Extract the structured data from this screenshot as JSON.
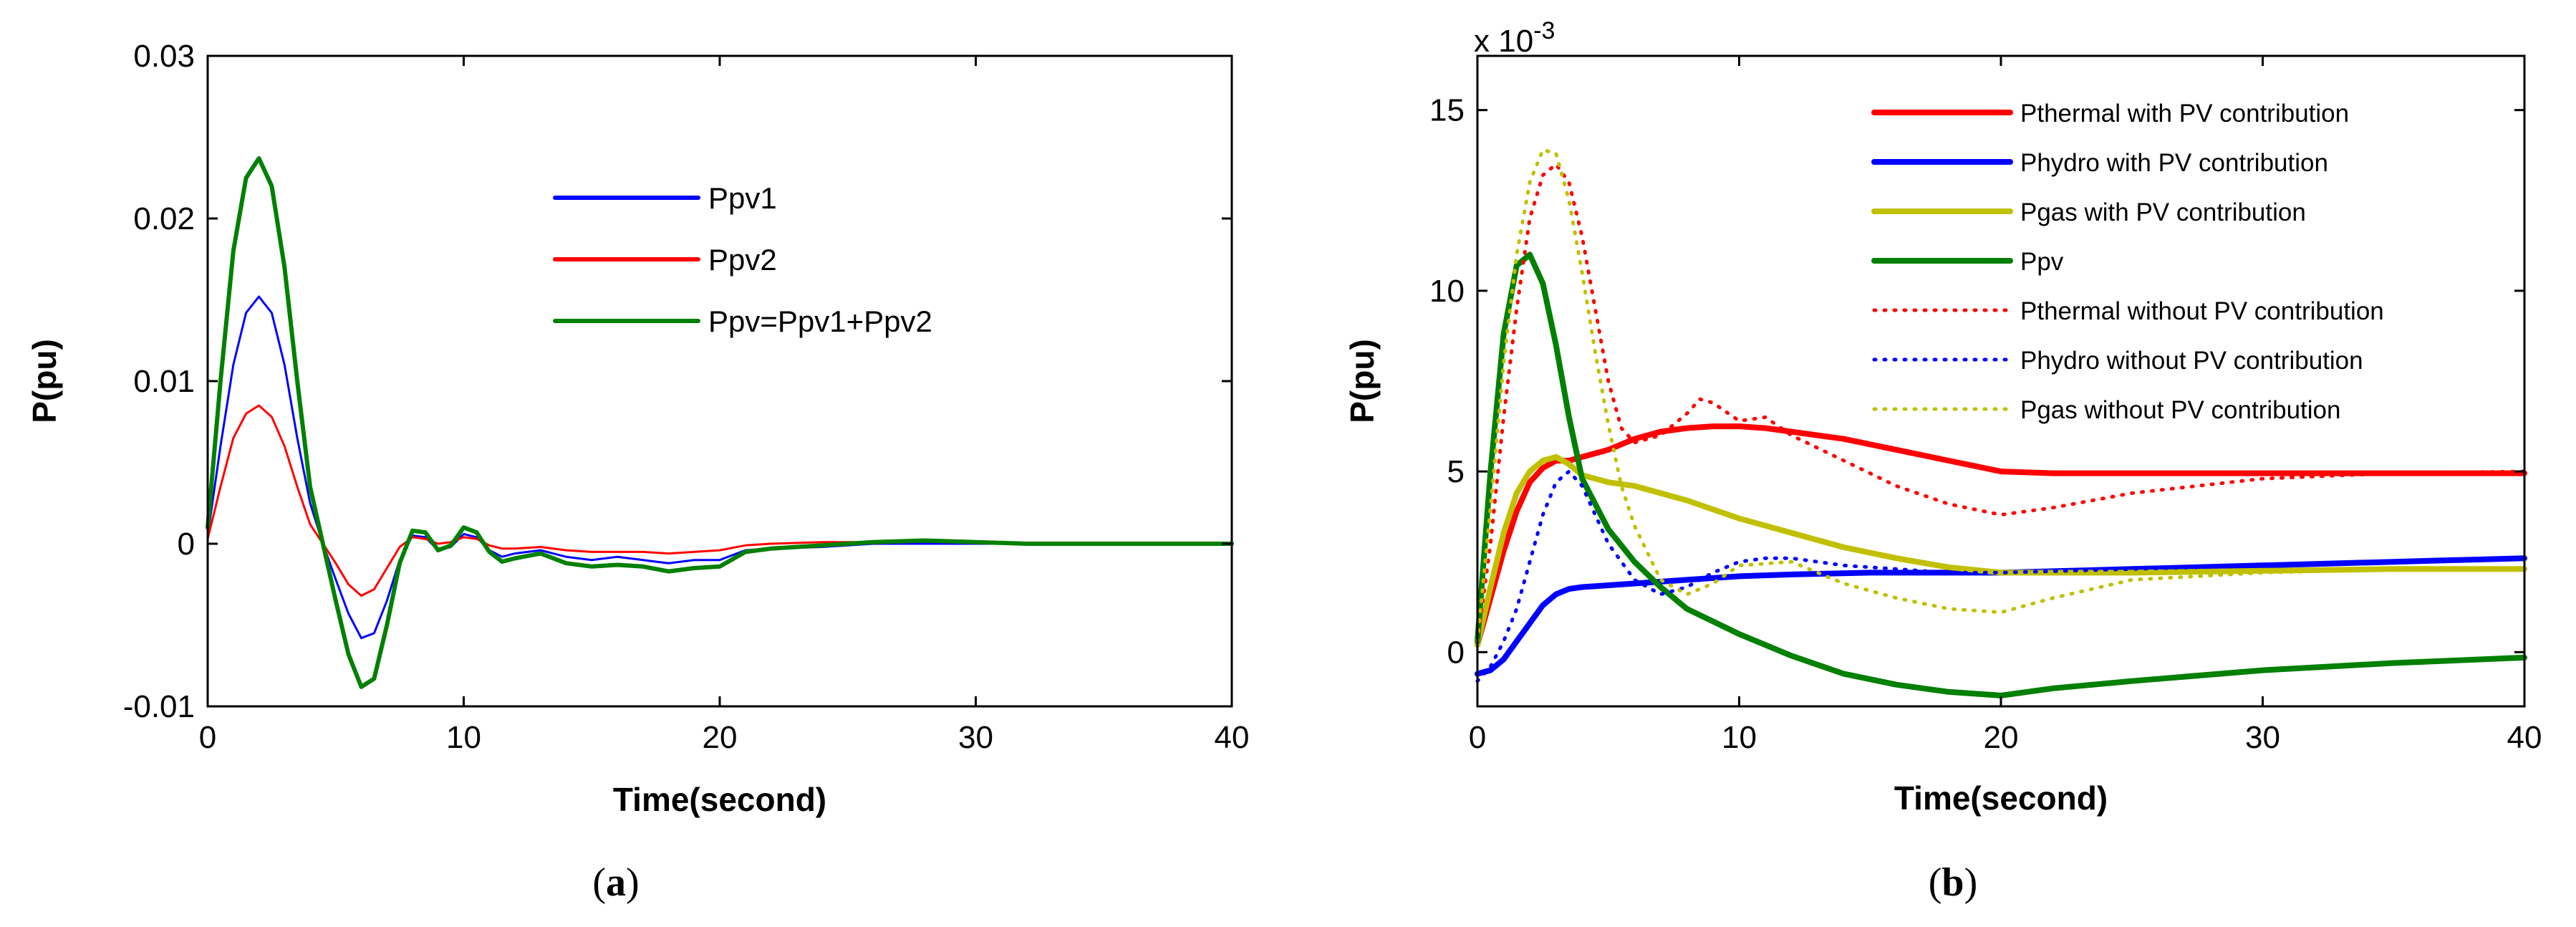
{
  "chart_data": [
    {
      "type": "line",
      "caption": "a",
      "xlabel": "Time(second)",
      "ylabel": "P(pu)",
      "xlim": [
        0,
        40
      ],
      "ylim": [
        -0.01,
        0.03
      ],
      "xticks": [
        "0",
        "10",
        "20",
        "30",
        "40"
      ],
      "yticks": [
        "-0.01",
        "0",
        "0.01",
        "0.02",
        "0.03"
      ],
      "legend_position": "upper-right",
      "series": [
        {
          "name": "Ppv1",
          "color": "#0000ff",
          "width": 3,
          "x": [
            0,
            0.5,
            1,
            1.5,
            2,
            2.5,
            3,
            3.5,
            4,
            4.5,
            5,
            5.5,
            6,
            6.5,
            7,
            7.5,
            8,
            8.5,
            9,
            9.5,
            10,
            10.5,
            11,
            11.5,
            12,
            13,
            14,
            15,
            16,
            17,
            18,
            19,
            20,
            21,
            22,
            24,
            26,
            28,
            30,
            32,
            35,
            40
          ],
          "y": [
            0.0005,
            0.006,
            0.011,
            0.0142,
            0.0152,
            0.0142,
            0.011,
            0.0065,
            0.0025,
            0.0,
            -0.0022,
            -0.0043,
            -0.0058,
            -0.0055,
            -0.0035,
            -0.001,
            0.0005,
            0.0004,
            -0.0004,
            -0.0002,
            0.0006,
            0.0004,
            -0.0004,
            -0.0008,
            -0.0006,
            -0.0004,
            -0.0008,
            -0.001,
            -0.0008,
            -0.001,
            -0.0012,
            -0.001,
            -0.001,
            -0.0004,
            -0.0003,
            -0.0002,
            0.0,
            0.0,
            0.0,
            0.0,
            0.0,
            0.0
          ]
        },
        {
          "name": "Ppv2",
          "color": "#ff0000",
          "width": 3,
          "x": [
            0,
            0.5,
            1,
            1.5,
            2,
            2.5,
            3,
            3.5,
            4,
            4.5,
            5,
            5.5,
            6,
            6.5,
            7,
            7.5,
            8,
            8.5,
            9,
            9.5,
            10,
            10.5,
            11,
            11.5,
            12,
            13,
            14,
            15,
            16,
            17,
            18,
            19,
            20,
            21,
            22,
            24,
            26,
            28,
            30,
            32,
            35,
            40
          ],
          "y": [
            0.0003,
            0.0035,
            0.0065,
            0.008,
            0.0085,
            0.0078,
            0.006,
            0.0035,
            0.0012,
            0.0,
            -0.0012,
            -0.0025,
            -0.0032,
            -0.0028,
            -0.0015,
            -0.0002,
            0.0004,
            0.0003,
            0.0,
            0.0001,
            0.0004,
            0.0003,
            -0.0001,
            -0.0003,
            -0.0003,
            -0.0002,
            -0.0004,
            -0.0005,
            -0.0005,
            -0.0005,
            -0.0006,
            -0.0005,
            -0.0004,
            -0.0001,
            0.0,
            0.0001,
            0.0001,
            0.0002,
            0.0001,
            0.0,
            0.0,
            0.0
          ]
        },
        {
          "name": "Ppv=Ppv1+Ppv2",
          "color": "#008000",
          "width": 6,
          "x": [
            0,
            0.5,
            1,
            1.5,
            2,
            2.5,
            3,
            3.5,
            4,
            4.5,
            5,
            5.5,
            6,
            6.5,
            7,
            7.5,
            8,
            8.5,
            9,
            9.5,
            10,
            10.5,
            11,
            11.5,
            12,
            13,
            14,
            15,
            16,
            17,
            18,
            19,
            20,
            21,
            22,
            24,
            26,
            28,
            30,
            32,
            35,
            40
          ],
          "y": [
            0.001,
            0.01,
            0.018,
            0.0225,
            0.0237,
            0.022,
            0.017,
            0.01,
            0.0035,
            0.0,
            -0.0035,
            -0.0068,
            -0.0088,
            -0.0083,
            -0.005,
            -0.0012,
            0.0008,
            0.0007,
            -0.0004,
            -0.0001,
            0.001,
            0.0007,
            -0.0005,
            -0.0011,
            -0.0009,
            -0.0006,
            -0.0012,
            -0.0014,
            -0.0013,
            -0.0014,
            -0.0017,
            -0.0015,
            -0.0014,
            -0.0005,
            -0.0003,
            -0.0001,
            0.0001,
            0.0002,
            0.0001,
            0.0,
            0.0,
            0.0
          ]
        }
      ]
    },
    {
      "type": "line",
      "caption": "b",
      "xlabel": "Time(second)",
      "ylabel": "P(pu)",
      "multiplier_base": "x 10",
      "multiplier_exponent": "-3",
      "xlim": [
        0,
        40
      ],
      "ylim": [
        -1.5,
        16.5
      ],
      "xticks": [
        "0",
        "10",
        "20",
        "30",
        "40"
      ],
      "yticks": [
        "0",
        "5",
        "10",
        "15"
      ],
      "legend_position": "upper-right",
      "series": [
        {
          "name": "Pthermal with PV contribution",
          "color": "#ff0000",
          "style": "solid",
          "width": 8,
          "x": [
            0,
            0.5,
            1,
            1.5,
            2,
            2.5,
            3,
            3.5,
            4,
            5,
            6,
            7,
            8,
            9,
            10,
            11,
            12,
            14,
            16,
            18,
            20,
            22,
            25,
            30,
            35,
            40
          ],
          "y": [
            0.2,
            1.5,
            2.8,
            3.9,
            4.7,
            5.1,
            5.3,
            5.3,
            5.4,
            5.6,
            5.9,
            6.1,
            6.2,
            6.25,
            6.25,
            6.2,
            6.1,
            5.9,
            5.6,
            5.3,
            5.0,
            4.95,
            4.95,
            4.95,
            4.95,
            4.95
          ]
        },
        {
          "name": "Phydro with PV contribution",
          "color": "#0000ff",
          "style": "solid",
          "width": 8,
          "x": [
            0,
            0.5,
            1,
            1.5,
            2,
            2.5,
            3,
            3.5,
            4,
            5,
            6,
            8,
            10,
            12,
            15,
            20,
            25,
            30,
            35,
            40
          ],
          "y": [
            -0.6,
            -0.5,
            -0.2,
            0.3,
            0.8,
            1.3,
            1.6,
            1.75,
            1.8,
            1.85,
            1.9,
            2.0,
            2.1,
            2.15,
            2.2,
            2.2,
            2.3,
            2.4,
            2.5,
            2.6
          ]
        },
        {
          "name": "Pgas with PV contribution",
          "color": "#c0c000",
          "style": "solid",
          "width": 8,
          "x": [
            0,
            0.5,
            1,
            1.5,
            2,
            2.5,
            3,
            3.5,
            4,
            5,
            6,
            8,
            10,
            12,
            14,
            16,
            18,
            20,
            25,
            30,
            35,
            40
          ],
          "y": [
            0.2,
            1.8,
            3.3,
            4.4,
            5.0,
            5.3,
            5.4,
            5.2,
            4.9,
            4.7,
            4.6,
            4.2,
            3.7,
            3.3,
            2.9,
            2.6,
            2.35,
            2.2,
            2.2,
            2.25,
            2.3,
            2.3
          ]
        },
        {
          "name": "Ppv",
          "color": "#008000",
          "style": "solid",
          "width": 8,
          "x": [
            0,
            0.5,
            1,
            1.5,
            2,
            2.5,
            3,
            3.5,
            4,
            5,
            6,
            7,
            8,
            10,
            12,
            14,
            16,
            18,
            20,
            22,
            25,
            30,
            35,
            40
          ],
          "y": [
            0.3,
            5.0,
            8.8,
            10.7,
            11.0,
            10.2,
            8.5,
            6.5,
            4.8,
            3.4,
            2.5,
            1.8,
            1.2,
            0.5,
            -0.1,
            -0.6,
            -0.9,
            -1.1,
            -1.2,
            -1.0,
            -0.8,
            -0.5,
            -0.3,
            -0.15
          ]
        },
        {
          "name": "Pthermal without PV contribution",
          "color": "#ff0000",
          "style": "dotted",
          "width": 5,
          "x": [
            0,
            0.5,
            1,
            1.5,
            2,
            2.5,
            3,
            3.5,
            4,
            4.5,
            5,
            5.5,
            6,
            7,
            8,
            8.5,
            9,
            10,
            11,
            12,
            14,
            16,
            18,
            20,
            22,
            25,
            30,
            35,
            40
          ],
          "y": [
            0.3,
            3.0,
            6.5,
            9.5,
            12.0,
            13.2,
            13.5,
            13.0,
            11.5,
            9.5,
            7.5,
            6.2,
            5.8,
            6.0,
            6.6,
            7.0,
            6.9,
            6.4,
            6.5,
            6.0,
            5.3,
            4.6,
            4.1,
            3.8,
            4.0,
            4.4,
            4.8,
            4.95,
            5.0
          ]
        },
        {
          "name": "Phydro without PV contribution",
          "color": "#0000ff",
          "style": "dotted",
          "width": 5,
          "x": [
            0,
            0.5,
            1,
            1.5,
            2,
            2.5,
            3,
            3.5,
            4,
            4.5,
            5,
            6,
            7,
            8,
            9,
            10,
            11,
            12,
            14,
            16,
            18,
            20,
            25,
            30,
            35,
            40
          ],
          "y": [
            -0.8,
            -0.4,
            0.3,
            1.2,
            2.5,
            3.8,
            4.7,
            5.0,
            4.6,
            3.8,
            3.0,
            2.0,
            1.6,
            1.8,
            2.2,
            2.5,
            2.6,
            2.6,
            2.4,
            2.3,
            2.2,
            2.2,
            2.3,
            2.4,
            2.5,
            2.6
          ]
        },
        {
          "name": "Pgas without PV contribution",
          "color": "#c0c000",
          "style": "dotted",
          "width": 5,
          "x": [
            0,
            0.5,
            1,
            1.5,
            2,
            2.5,
            3,
            3.5,
            4,
            4.5,
            5,
            5.5,
            6,
            7,
            8,
            9,
            10,
            12,
            14,
            16,
            18,
            20,
            22,
            25,
            30,
            35,
            40
          ],
          "y": [
            0.3,
            4.0,
            8.0,
            11.0,
            13.0,
            13.9,
            13.8,
            12.5,
            10.5,
            8.3,
            6.3,
            4.6,
            3.5,
            2.0,
            1.6,
            1.9,
            2.4,
            2.5,
            1.9,
            1.5,
            1.2,
            1.1,
            1.5,
            2.0,
            2.2,
            2.3,
            2.3
          ]
        }
      ]
    }
  ]
}
